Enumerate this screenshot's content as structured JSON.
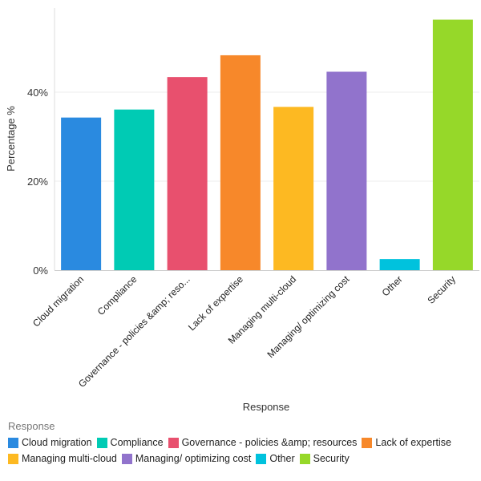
{
  "chart_data": {
    "type": "bar",
    "title": "",
    "xlabel": "Response",
    "ylabel": "Percentage %",
    "ylim": [
      0,
      58
    ],
    "yticks": [
      0,
      20,
      40
    ],
    "ytick_labels": [
      "0%",
      "20%",
      "40%"
    ],
    "grid": true,
    "categories": [
      "Cloud migration",
      "Compliance",
      "Governance - policies &amp; reso...",
      "Lack of expertise",
      "Managing multi-cloud",
      "Managing/ optimizing cost",
      "Other",
      "Security"
    ],
    "values": [
      34.3,
      36.1,
      43.4,
      48.3,
      36.7,
      44.6,
      2.5,
      56.3
    ],
    "colors": [
      "#2a8ae0",
      "#00cbb4",
      "#e8506e",
      "#f7882a",
      "#fdb922",
      "#9173cc",
      "#00c2dd",
      "#96d829"
    ],
    "legend": {
      "title": "Response",
      "placement": "bottom",
      "entries": [
        "Cloud migration",
        "Compliance",
        "Governance - policies &amp; resources",
        "Lack of expertise",
        "Managing multi-cloud",
        "Managing/ optimizing cost",
        "Other",
        "Security"
      ]
    }
  }
}
